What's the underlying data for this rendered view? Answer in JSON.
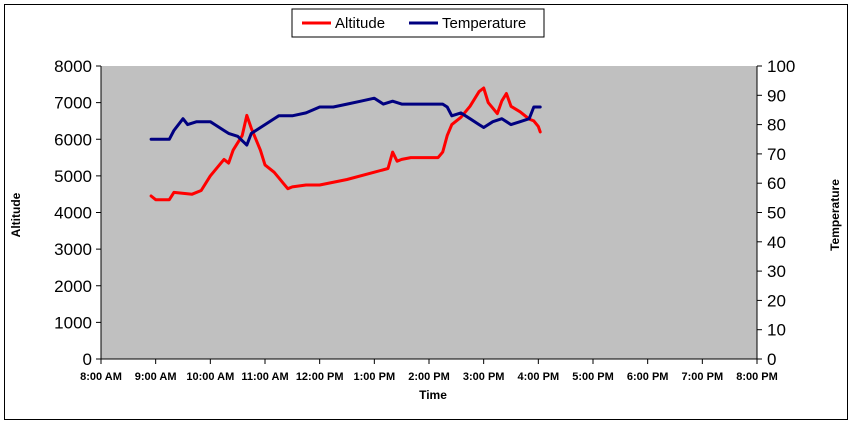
{
  "chart_data": {
    "type": "line",
    "title": "",
    "xlabel": "Time",
    "ylabel_left": "Altitude",
    "ylabel_right": "Temperature",
    "x_ticks": [
      "8:00 AM",
      "9:00 AM",
      "10:00 AM",
      "11:00 AM",
      "12:00 PM",
      "1:00 PM",
      "2:00 PM",
      "3:00 PM",
      "4:00 PM",
      "5:00 PM",
      "6:00 PM",
      "7:00 PM",
      "8:00 PM"
    ],
    "x_range_hours": [
      8,
      20
    ],
    "y_left_ticks": [
      "0",
      "1000",
      "2000",
      "3000",
      "4000",
      "5000",
      "6000",
      "7000",
      "8000"
    ],
    "y_left_range": [
      0,
      8000
    ],
    "y_right_ticks": [
      "0",
      "10",
      "20",
      "30",
      "40",
      "50",
      "60",
      "70",
      "80",
      "90",
      "100"
    ],
    "y_right_range": [
      0,
      100
    ],
    "grid": false,
    "plot_background": "#c0c0c0",
    "legend": {
      "placement": "top-center",
      "entries": [
        "Altitude",
        "Temperature"
      ]
    },
    "series": [
      {
        "name": "Altitude",
        "axis": "left",
        "color": "#ff0000",
        "x": [
          "8:55 AM",
          "9:00 AM",
          "9:15 AM",
          "9:20 AM",
          "9:40 AM",
          "9:50 AM",
          "10:00 AM",
          "10:10 AM",
          "10:15 AM",
          "10:20 AM",
          "10:25 AM",
          "10:35 AM",
          "10:40 AM",
          "10:45 AM",
          "10:50 AM",
          "10:55 AM",
          "11:00 AM",
          "11:10 AM",
          "11:15 AM",
          "11:20 AM",
          "11:25 AM",
          "11:30 AM",
          "11:45 AM",
          "12:00 PM",
          "12:30 PM",
          "1:00 PM",
          "1:15 PM",
          "1:20 PM",
          "1:25 PM",
          "1:30 PM",
          "1:40 PM",
          "2:10 PM",
          "2:15 PM",
          "2:20 PM",
          "2:25 PM",
          "2:35 PM",
          "2:45 PM",
          "2:55 PM",
          "3:00 PM",
          "3:05 PM",
          "3:15 PM",
          "3:20 PM",
          "3:25 PM",
          "3:30 PM",
          "3:40 PM",
          "3:50 PM",
          "3:55 PM",
          "4:00 PM",
          "4:02 PM"
        ],
        "y": [
          4450,
          4350,
          4350,
          4550,
          4500,
          4600,
          5000,
          5300,
          5450,
          5350,
          5700,
          6100,
          6650,
          6300,
          6000,
          5700,
          5300,
          5100,
          4950,
          4800,
          4650,
          4700,
          4750,
          4750,
          4900,
          5100,
          5200,
          5650,
          5400,
          5450,
          5500,
          5500,
          5650,
          6100,
          6400,
          6600,
          6900,
          7300,
          7400,
          7000,
          6700,
          7050,
          7250,
          6900,
          6750,
          6550,
          6500,
          6350,
          6200
        ]
      },
      {
        "name": "Temperature",
        "axis": "right",
        "color": "#000080",
        "x": [
          "8:55 AM",
          "9:15 AM",
          "9:20 AM",
          "9:30 AM",
          "9:35 AM",
          "9:45 AM",
          "10:00 AM",
          "10:05 AM",
          "10:15 AM",
          "10:20 AM",
          "10:30 AM",
          "10:40 AM",
          "10:45 AM",
          "10:50 AM",
          "11:00 AM",
          "11:10 AM",
          "11:15 AM",
          "11:30 AM",
          "11:45 AM",
          "12:00 PM",
          "12:15 PM",
          "12:30 PM",
          "12:45 PM",
          "1:00 PM",
          "1:10 PM",
          "1:20 PM",
          "1:30 PM",
          "1:45 PM",
          "2:00 PM",
          "2:15 PM",
          "2:20 PM",
          "2:25 PM",
          "2:35 PM",
          "2:45 PM",
          "2:55 PM",
          "3:00 PM",
          "3:10 PM",
          "3:20 PM",
          "3:30 PM",
          "3:40 PM",
          "3:50 PM",
          "3:55 PM",
          "4:02 PM"
        ],
        "y": [
          75,
          75,
          78,
          82,
          80,
          81,
          81,
          80,
          78,
          77,
          76,
          73,
          77,
          78,
          80,
          82,
          83,
          83,
          84,
          86,
          86,
          87,
          88,
          89,
          87,
          88,
          87,
          87,
          87,
          87,
          86,
          83,
          84,
          82,
          80,
          79,
          81,
          82,
          80,
          81,
          82,
          86,
          86
        ]
      }
    ]
  }
}
